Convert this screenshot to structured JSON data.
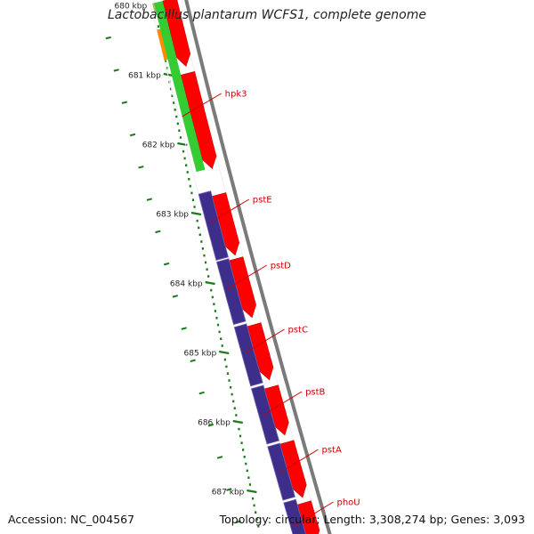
{
  "title": "Lactobacillus plantarum WCFS1, complete genome",
  "footer": {
    "accession": "Accession: NC_004567",
    "summary": "Topology: circular; Length: 3,308,274 bp; Genes: 3,093"
  },
  "colors": {
    "backbone": "#7a7a7a",
    "forward_gene": "#ff0000",
    "reverse_cds": "#3c2e8a",
    "hpk3_track": "#33cc33",
    "orange_track": "#ff8c00",
    "olive_track": "#b7b56a",
    "gene_label": "#cc0000",
    "tick": "#1a7a1a",
    "kbp_label": "#222222"
  },
  "ruler": {
    "labels": [
      {
        "text": "680 kbp",
        "kbp": 680
      },
      {
        "text": "681 kbp",
        "kbp": 681
      },
      {
        "text": "682 kbp",
        "kbp": 682
      },
      {
        "text": "683 kbp",
        "kbp": 683
      },
      {
        "text": "684 kbp",
        "kbp": 684
      },
      {
        "text": "685 kbp",
        "kbp": 685
      },
      {
        "text": "686 kbp",
        "kbp": 686
      },
      {
        "text": "687 kbp",
        "kbp": 687
      }
    ]
  },
  "genes": [
    {
      "name": "hpk3"
    },
    {
      "name": "pstE"
    },
    {
      "name": "pstD"
    },
    {
      "name": "pstC"
    },
    {
      "name": "pstB"
    },
    {
      "name": "pstA"
    },
    {
      "name": "phoU"
    }
  ]
}
